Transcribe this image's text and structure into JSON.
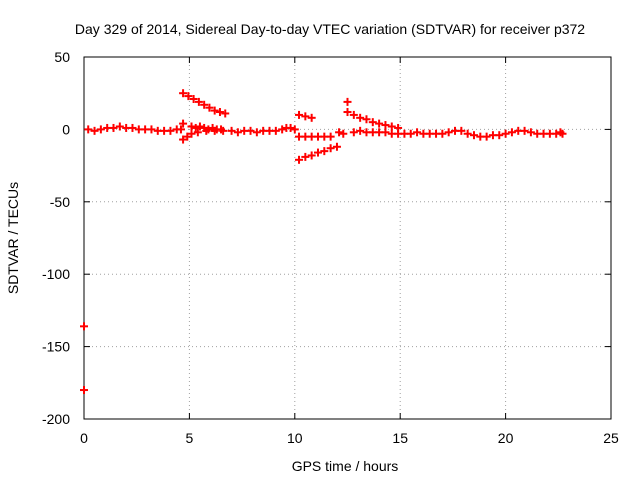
{
  "chart_data": {
    "type": "scatter",
    "title": "Day 329 of 2014, Sidereal Day-to-day VTEC variation (SDTVAR) for receiver p372",
    "xlabel": "GPS time / hours",
    "ylabel": "SDTVAR / TECUs",
    "xlim": [
      0,
      25
    ],
    "ylim": [
      -200,
      50
    ],
    "xticks": [
      0,
      5,
      10,
      15,
      20,
      25
    ],
    "yticks": [
      50,
      0,
      -50,
      -100,
      -150,
      -200
    ],
    "xtick_labels": [
      "0",
      "5",
      "10",
      "15",
      "20",
      "25"
    ],
    "ytick_labels": [
      "50",
      "0",
      "-50",
      "-100",
      "-150",
      "-200"
    ],
    "grid": true,
    "marker": "+",
    "series": [
      {
        "name": "SDTVAR",
        "color": "#ff0000",
        "points": [
          [
            0.0,
            -136
          ],
          [
            0.0,
            -180
          ],
          [
            0.2,
            0
          ],
          [
            0.5,
            -1
          ],
          [
            0.8,
            0
          ],
          [
            1.1,
            1
          ],
          [
            1.4,
            1
          ],
          [
            1.7,
            2
          ],
          [
            2.0,
            1
          ],
          [
            2.3,
            1
          ],
          [
            2.6,
            0
          ],
          [
            2.9,
            0
          ],
          [
            3.2,
            0
          ],
          [
            3.5,
            -1
          ],
          [
            3.8,
            -1
          ],
          [
            4.1,
            -1
          ],
          [
            4.4,
            0
          ],
          [
            4.6,
            0
          ],
          [
            4.7,
            4
          ],
          [
            4.7,
            -7
          ],
          [
            4.9,
            -5
          ],
          [
            5.1,
            -3
          ],
          [
            4.7,
            25
          ],
          [
            4.95,
            23
          ],
          [
            5.2,
            21
          ],
          [
            5.45,
            19
          ],
          [
            5.7,
            17
          ],
          [
            5.95,
            15
          ],
          [
            6.2,
            13
          ],
          [
            6.45,
            12
          ],
          [
            6.7,
            11
          ],
          [
            5.1,
            2
          ],
          [
            5.3,
            1
          ],
          [
            5.5,
            2
          ],
          [
            5.7,
            1
          ],
          [
            5.9,
            0
          ],
          [
            6.1,
            1
          ],
          [
            6.3,
            0
          ],
          [
            6.5,
            0
          ],
          [
            5.4,
            -2
          ],
          [
            5.8,
            -1
          ],
          [
            6.2,
            -1
          ],
          [
            6.6,
            -1
          ],
          [
            7.0,
            -1
          ],
          [
            7.3,
            -2
          ],
          [
            7.6,
            -1
          ],
          [
            7.9,
            -1
          ],
          [
            8.2,
            -2
          ],
          [
            8.5,
            -1
          ],
          [
            8.8,
            -1
          ],
          [
            9.1,
            -1
          ],
          [
            9.4,
            0
          ],
          [
            9.6,
            1
          ],
          [
            9.8,
            1
          ],
          [
            10.0,
            0
          ],
          [
            10.2,
            10
          ],
          [
            10.5,
            9
          ],
          [
            10.8,
            8
          ],
          [
            10.2,
            -5
          ],
          [
            10.5,
            -5
          ],
          [
            10.8,
            -5
          ],
          [
            11.1,
            -5
          ],
          [
            11.4,
            -5
          ],
          [
            11.7,
            -5
          ],
          [
            10.2,
            -21
          ],
          [
            10.5,
            -19
          ],
          [
            10.8,
            -18
          ],
          [
            11.1,
            -16
          ],
          [
            11.4,
            -15
          ],
          [
            11.7,
            -13
          ],
          [
            12.0,
            -12
          ],
          [
            12.1,
            -2
          ],
          [
            12.3,
            -3
          ],
          [
            12.5,
            19
          ],
          [
            12.5,
            12
          ],
          [
            12.8,
            10
          ],
          [
            13.1,
            8
          ],
          [
            13.4,
            7
          ],
          [
            13.7,
            5
          ],
          [
            14.0,
            4
          ],
          [
            14.3,
            3
          ],
          [
            14.6,
            2
          ],
          [
            14.9,
            1
          ],
          [
            12.8,
            -2
          ],
          [
            13.1,
            -1
          ],
          [
            13.4,
            -2
          ],
          [
            13.7,
            -2
          ],
          [
            14.0,
            -2
          ],
          [
            14.3,
            -2
          ],
          [
            14.6,
            -3
          ],
          [
            14.9,
            -3
          ],
          [
            15.2,
            -3
          ],
          [
            15.5,
            -3
          ],
          [
            15.8,
            -2
          ],
          [
            16.1,
            -3
          ],
          [
            16.4,
            -3
          ],
          [
            16.7,
            -3
          ],
          [
            17.0,
            -3
          ],
          [
            17.3,
            -2
          ],
          [
            17.6,
            -1
          ],
          [
            17.9,
            -1
          ],
          [
            18.2,
            -3
          ],
          [
            18.5,
            -4
          ],
          [
            18.8,
            -5
          ],
          [
            19.1,
            -5
          ],
          [
            19.4,
            -4
          ],
          [
            19.7,
            -4
          ],
          [
            20.0,
            -3
          ],
          [
            20.3,
            -2
          ],
          [
            20.6,
            -1
          ],
          [
            20.9,
            -1
          ],
          [
            21.2,
            -2
          ],
          [
            21.5,
            -3
          ],
          [
            21.8,
            -3
          ],
          [
            22.1,
            -3
          ],
          [
            22.4,
            -3
          ],
          [
            22.6,
            -2
          ],
          [
            22.7,
            -3
          ]
        ]
      }
    ]
  }
}
